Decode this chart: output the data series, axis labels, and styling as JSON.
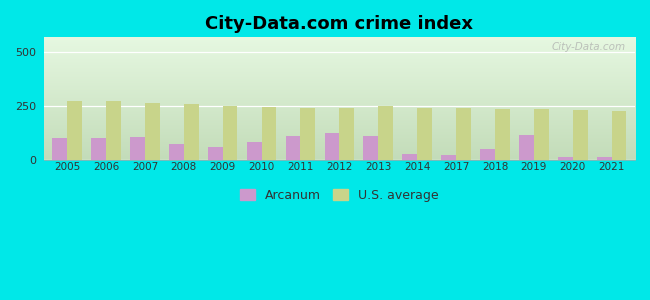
{
  "title": "City-Data.com crime index",
  "years": [
    2005,
    2006,
    2007,
    2008,
    2009,
    2010,
    2011,
    2012,
    2013,
    2014,
    2017,
    2018,
    2019,
    2020,
    2021
  ],
  "arcanum": [
    100,
    100,
    105,
    75,
    60,
    82,
    108,
    122,
    112,
    28,
    22,
    50,
    115,
    13,
    12
  ],
  "us_average": [
    272,
    272,
    265,
    260,
    248,
    244,
    242,
    242,
    248,
    242,
    242,
    236,
    234,
    230,
    228
  ],
  "arcanum_color": "#cc99cc",
  "us_average_color": "#c8d48a",
  "background_color_topleft": "#e8f5e8",
  "background_color_topright": "#d8ecd8",
  "background_color_bottom": "#c8ddb8",
  "figure_bg": "#00e8e8",
  "ylim": [
    0,
    570
  ],
  "yticks": [
    0,
    250,
    500
  ],
  "bar_width": 0.38,
  "title_fontsize": 13,
  "watermark": "City-Data.com"
}
